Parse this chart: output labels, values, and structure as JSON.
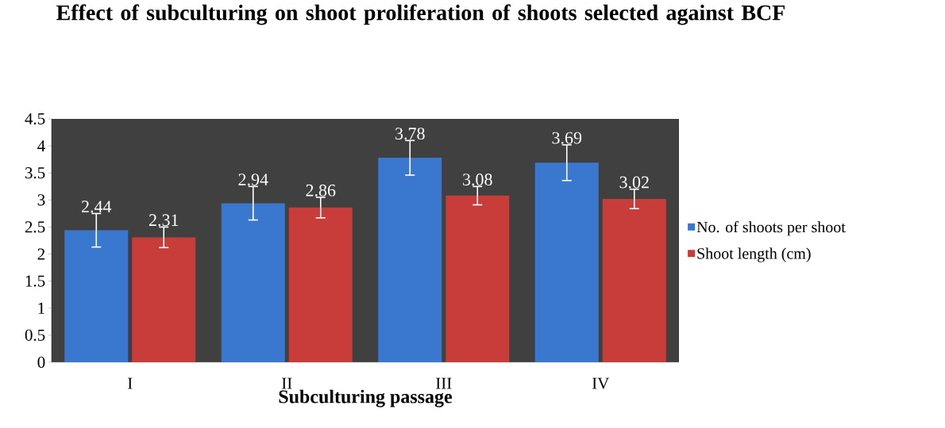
{
  "chart_data": {
    "type": "bar",
    "title": "Effect of subculturing on shoot proliferation of shoots selected against BCF",
    "xlabel": "Subculturing passage",
    "categories": [
      "I",
      "II",
      "III",
      "IV"
    ],
    "series": [
      {
        "name": "No. of shoots per shoot",
        "color": "#3a78d0",
        "values": [
          2.44,
          2.94,
          3.78,
          3.69
        ],
        "errors": [
          0.31,
          0.31,
          0.32,
          0.33
        ],
        "value_labels": [
          "2.44",
          "2.94",
          "3.78",
          "3.69"
        ]
      },
      {
        "name": "Shoot length (cm)",
        "color": "#c83c3a",
        "values": [
          2.31,
          2.86,
          3.08,
          3.02
        ],
        "errors": [
          0.19,
          0.19,
          0.17,
          0.18
        ],
        "value_labels": [
          "2.31",
          "2.86",
          "3.08",
          "3.02"
        ]
      }
    ],
    "ylim": [
      0,
      4.5
    ],
    "yticks": [
      0,
      0.5,
      1,
      1.5,
      2,
      2.5,
      3,
      3.5,
      4,
      4.5
    ],
    "grid": false,
    "legend": "right"
  }
}
